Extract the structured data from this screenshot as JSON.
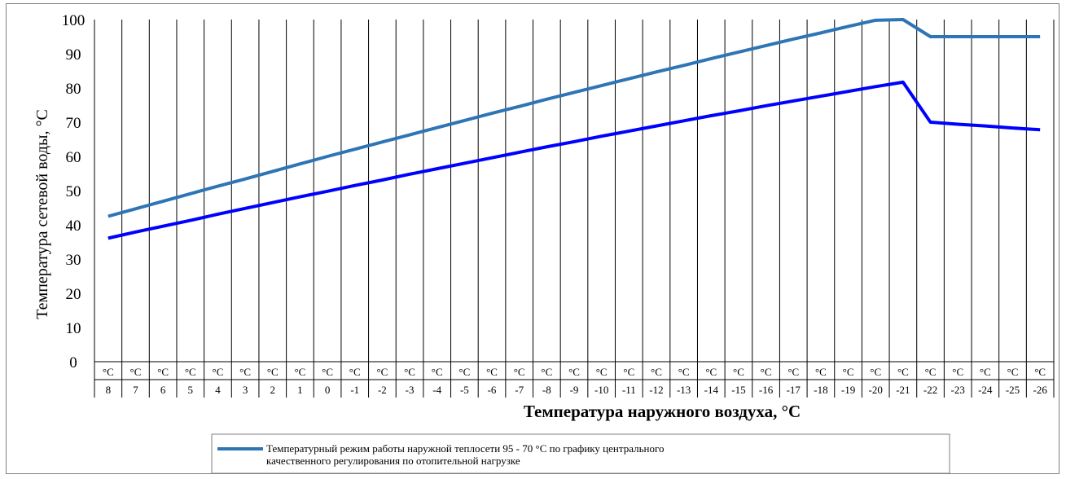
{
  "chart_data": {
    "type": "line",
    "xlabel": "Температура наружного воздуха, °С",
    "ylabel": "Температура сетевой воды, °С",
    "ylim": [
      0,
      100
    ],
    "yticks": [
      0,
      10,
      20,
      30,
      40,
      50,
      60,
      70,
      80,
      90,
      100
    ],
    "x_unit": "°C",
    "categories": [
      "8",
      "7",
      "6",
      "5",
      "4",
      "3",
      "2",
      "1",
      "0",
      "-1",
      "-2",
      "-3",
      "-4",
      "-5",
      "-6",
      "-7",
      "-8",
      "-9",
      "-10",
      "-11",
      "-12",
      "-13",
      "-14",
      "-15",
      "-16",
      "-17",
      "-18",
      "-19",
      "-20",
      "-21",
      "-22",
      "-23",
      "-24",
      "-25",
      "-26"
    ],
    "series": [
      {
        "name": "",
        "color": "#2e75b6",
        "values": [
          42.5,
          44.7,
          46.9,
          49.1,
          51.3,
          53.4,
          55.6,
          57.8,
          60.0,
          62.1,
          64.2,
          66.3,
          68.4,
          70.5,
          72.6,
          74.6,
          76.7,
          78.7,
          80.7,
          82.7,
          84.7,
          86.6,
          88.6,
          90.5,
          92.4,
          94.3,
          96.1,
          98.0,
          99.8,
          101.6,
          95,
          95,
          95,
          95,
          95
        ]
      },
      {
        "name": "",
        "color": "#0000ff",
        "values": [
          36.1,
          37.9,
          39.6,
          41.3,
          43.1,
          44.8,
          46.5,
          48.2,
          49.8,
          51.5,
          53.1,
          54.8,
          56.4,
          58.0,
          59.6,
          61.2,
          62.8,
          64.3,
          65.9,
          67.4,
          68.9,
          70.4,
          71.9,
          73.3,
          74.8,
          76.2,
          77.6,
          79.0,
          80.4,
          81.7,
          70,
          69.4,
          68.9,
          68.3,
          67.8
        ]
      }
    ],
    "legend": {
      "placement": "bottom",
      "entries": [
        {
          "color": "#2e75b6",
          "line1": "Температурный режим работы наружной теплосети 95 - 70 °С по графику центрального",
          "line2": "качественного регулирования по отопительной нагрузке"
        }
      ]
    },
    "grid": {
      "vertical": true,
      "horizontal": false
    }
  }
}
